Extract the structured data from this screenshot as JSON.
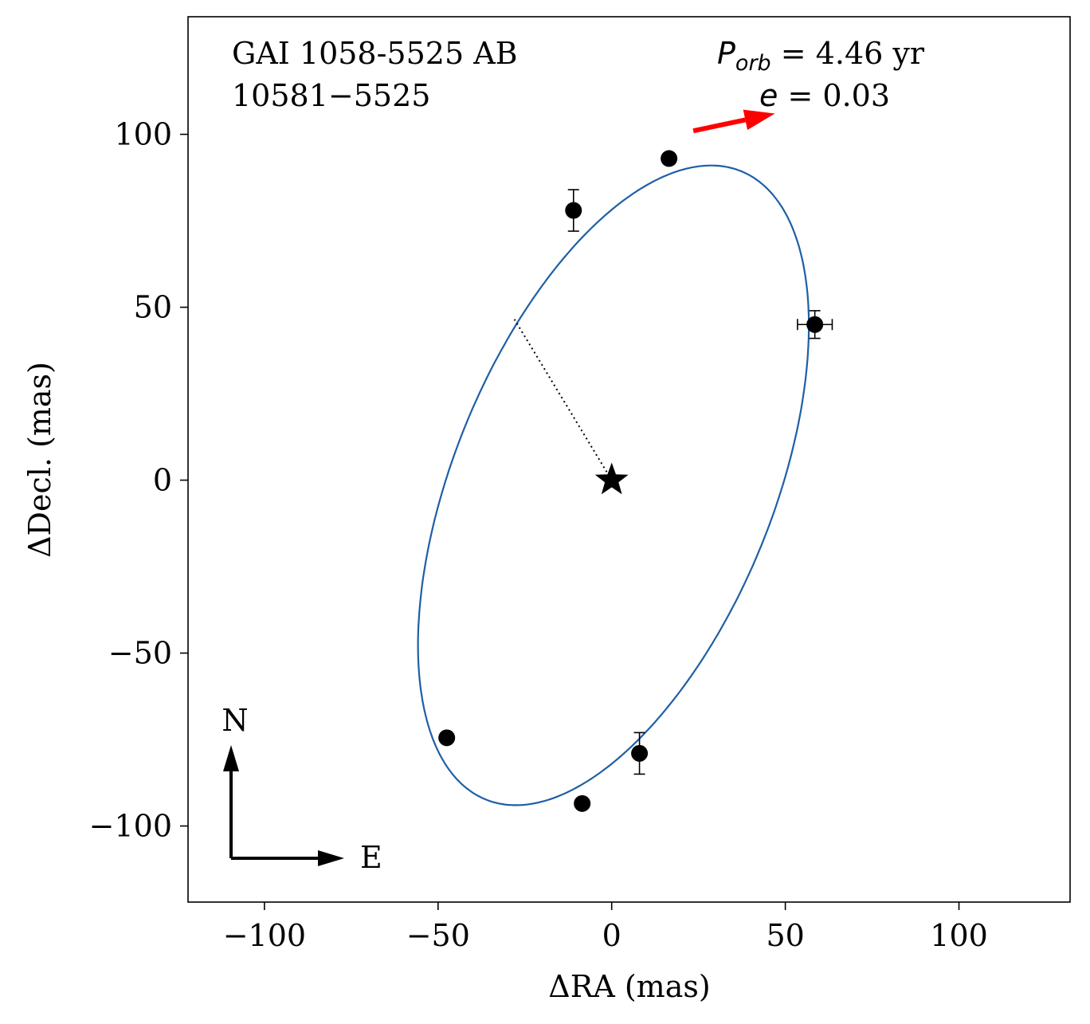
{
  "chart_data": {
    "type": "scatter",
    "title_line1": "GAI 1058-5525 AB",
    "title_line2": "10581−5525",
    "period_symbol": "P",
    "period_subscript": "orb",
    "period_value": " =  4.46 yr",
    "ecc_symbol": "e",
    "ecc_value": " = 0.03",
    "xlabel": "ΔRA  (mas)",
    "ylabel": "ΔDecl.  (mas)",
    "xlim": [
      -122,
      132
    ],
    "ylim": [
      -122,
      134
    ],
    "xticks": [
      -100,
      -50,
      0,
      50,
      100
    ],
    "yticks": [
      -100,
      -50,
      0,
      50,
      100
    ],
    "xtick_labels": [
      "−100",
      "−50",
      "0",
      "50",
      "100"
    ],
    "ytick_labels": [
      "−100",
      "−50",
      "0",
      "50",
      "100"
    ],
    "orbit": {
      "center": [
        0.5,
        -1.5
      ],
      "semi_major": 98,
      "semi_minor": 46,
      "tilt_deg_from_north_toward_east": 22,
      "color": "#1f5fa6"
    },
    "primary_star": [
      0,
      0
    ],
    "periastron_line": {
      "from": [
        0,
        0
      ],
      "to": [
        -28,
        46.5
      ]
    },
    "points": [
      {
        "x": 16.5,
        "y": 93,
        "xerr": 0,
        "yerr": 0
      },
      {
        "x": -11,
        "y": 78,
        "xerr": 0,
        "yerr": 6
      },
      {
        "x": 58.5,
        "y": 45,
        "xerr": 5,
        "yerr": 4
      },
      {
        "x": -47.5,
        "y": -74.5,
        "xerr": 0,
        "yerr": 0
      },
      {
        "x": 8,
        "y": -79,
        "xerr": 0,
        "yerr": 6
      },
      {
        "x": -8.5,
        "y": -93.5,
        "xerr": 0,
        "yerr": 0
      }
    ],
    "motion_arrow": {
      "from": [
        23.5,
        101
      ],
      "to": [
        47,
        106
      ],
      "color": "#ff0000"
    },
    "compass": {
      "north_label": "N",
      "east_label": "E"
    }
  }
}
